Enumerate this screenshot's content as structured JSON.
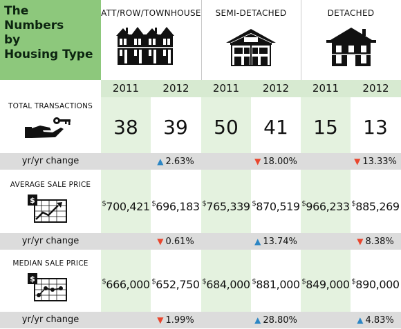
{
  "title": "The\nNumbers\nby\nHousing Type",
  "categories": [
    "ATT/ROW/TOWNHOUSE",
    "SEMI-DETACHED",
    "DETACHED"
  ],
  "icons": [
    "row-houses-icon",
    "semi-detached-house-icon",
    "detached-house-icon",
    "hand-key-icon",
    "price-chart-up-icon",
    "price-chart-scatter-icon"
  ],
  "years": [
    "2011",
    "2012",
    "2011",
    "2012",
    "2011",
    "2012"
  ],
  "colors": {
    "title_bg": "#8dc87c",
    "col_light": "#e4f2df",
    "year_band": "#d7ead1",
    "change_band": "#dcdcdc",
    "up": "#2c86c4",
    "down": "#e9462e"
  },
  "rows": {
    "transactions": {
      "label": "TOTAL TRANSACTIONS",
      "values": [
        "38",
        "39",
        "50",
        "41",
        "15",
        "13"
      ],
      "change_label": "yr/yr change",
      "changes": [
        {
          "text": "",
          "dir": ""
        },
        {
          "text": "2.63%",
          "dir": "up"
        },
        {
          "text": "",
          "dir": ""
        },
        {
          "text": "18.00%",
          "dir": "down"
        },
        {
          "text": "",
          "dir": ""
        },
        {
          "text": "13.33%",
          "dir": "down"
        }
      ]
    },
    "average": {
      "label": "AVERAGE SALE PRICE",
      "currency": "$",
      "values": [
        "700,421",
        "696,183",
        "765,339",
        "870,519",
        "966,233",
        "885,269"
      ],
      "change_label": "yr/yr change",
      "changes": [
        {
          "text": "",
          "dir": ""
        },
        {
          "text": "0.61%",
          "dir": "down"
        },
        {
          "text": "",
          "dir": ""
        },
        {
          "text": "13.74%",
          "dir": "up"
        },
        {
          "text": "",
          "dir": ""
        },
        {
          "text": "8.38%",
          "dir": "down"
        }
      ]
    },
    "median": {
      "label": "MEDIAN SALE PRICE",
      "currency": "$",
      "values": [
        "666,000",
        "652,750",
        "684,000",
        "881,000",
        "849,000",
        "890,000"
      ],
      "change_label": "yr/yr change",
      "changes": [
        {
          "text": "",
          "dir": ""
        },
        {
          "text": "1.99%",
          "dir": "down"
        },
        {
          "text": "",
          "dir": ""
        },
        {
          "text": "28.80%",
          "dir": "up"
        },
        {
          "text": "",
          "dir": ""
        },
        {
          "text": "4.83%",
          "dir": "up"
        }
      ]
    }
  }
}
